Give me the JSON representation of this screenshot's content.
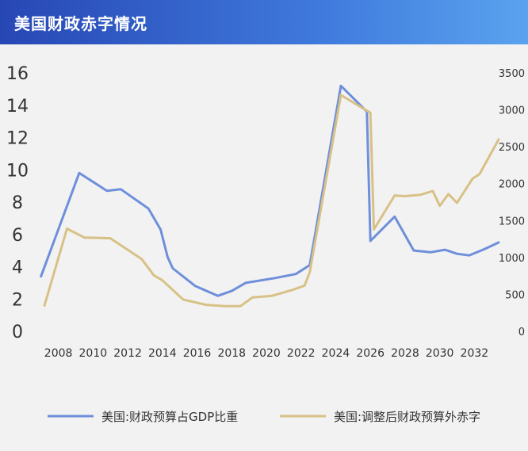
{
  "header": {
    "title": "美国财政赤字情况"
  },
  "chart_data": {
    "type": "line",
    "x_ticks": [
      "2008",
      "2010",
      "2012",
      "2014",
      "2016",
      "2018",
      "2020",
      "2022",
      "2024",
      "2026",
      "2028",
      "2030",
      "2032"
    ],
    "y_left_ticks": [
      "0",
      "2",
      "4",
      "6",
      "8",
      "10",
      "12",
      "14",
      "16"
    ],
    "y_right_ticks": [
      "0",
      "500",
      "1000",
      "1500",
      "2000",
      "2500",
      "3000",
      "3500"
    ],
    "ylim_left": [
      0,
      16
    ],
    "ylim_right": [
      0,
      3500
    ],
    "xlim": [
      2006.6,
      2033.4
    ],
    "series": [
      {
        "name": "美国:财政预算占GDP比重",
        "axis": "left",
        "color": "#6f8fdb",
        "points": [
          [
            2007,
            3.4
          ],
          [
            2009.2,
            9.8
          ],
          [
            2010.8,
            8.7
          ],
          [
            2011.6,
            8.8
          ],
          [
            2013.2,
            7.6
          ],
          [
            2013.9,
            6.3
          ],
          [
            2014.3,
            4.6
          ],
          [
            2014.6,
            3.9
          ],
          [
            2015.9,
            2.8
          ],
          [
            2017.2,
            2.2
          ],
          [
            2018.0,
            2.5
          ],
          [
            2018.8,
            3.0
          ],
          [
            2020.5,
            3.3
          ],
          [
            2021.7,
            3.55
          ],
          [
            2022.5,
            4.1
          ],
          [
            2024.3,
            15.2
          ],
          [
            2025.8,
            13.6
          ],
          [
            2026.0,
            5.6
          ],
          [
            2027.4,
            7.1
          ],
          [
            2028.5,
            5.0
          ],
          [
            2029.5,
            4.9
          ],
          [
            2030.3,
            5.05
          ],
          [
            2031.0,
            4.8
          ],
          [
            2031.7,
            4.7
          ],
          [
            2032.6,
            5.1
          ],
          [
            2033.4,
            5.5
          ]
        ]
      },
      {
        "name": "美国:调整后财政预算外赤字",
        "axis": "right",
        "color": "#d7c186",
        "points": [
          [
            2007.2,
            350
          ],
          [
            2008.5,
            1390
          ],
          [
            2009.5,
            1270
          ],
          [
            2011.0,
            1260
          ],
          [
            2012.8,
            980
          ],
          [
            2013.5,
            760
          ],
          [
            2014.0,
            690
          ],
          [
            2015.2,
            430
          ],
          [
            2016.5,
            360
          ],
          [
            2017.6,
            340
          ],
          [
            2018.5,
            340
          ],
          [
            2019.2,
            460
          ],
          [
            2020.3,
            480
          ],
          [
            2021.5,
            560
          ],
          [
            2022.2,
            620
          ],
          [
            2022.5,
            800
          ],
          [
            2024.3,
            3200
          ],
          [
            2026.0,
            2960
          ],
          [
            2026.2,
            1380
          ],
          [
            2027.4,
            1840
          ],
          [
            2028.0,
            1830
          ],
          [
            2028.9,
            1850
          ],
          [
            2029.6,
            1900
          ],
          [
            2030.0,
            1700
          ],
          [
            2030.5,
            1860
          ],
          [
            2031.0,
            1740
          ],
          [
            2031.9,
            2070
          ],
          [
            2032.3,
            2130
          ],
          [
            2033.4,
            2600
          ]
        ]
      }
    ],
    "legend": "bottom"
  }
}
